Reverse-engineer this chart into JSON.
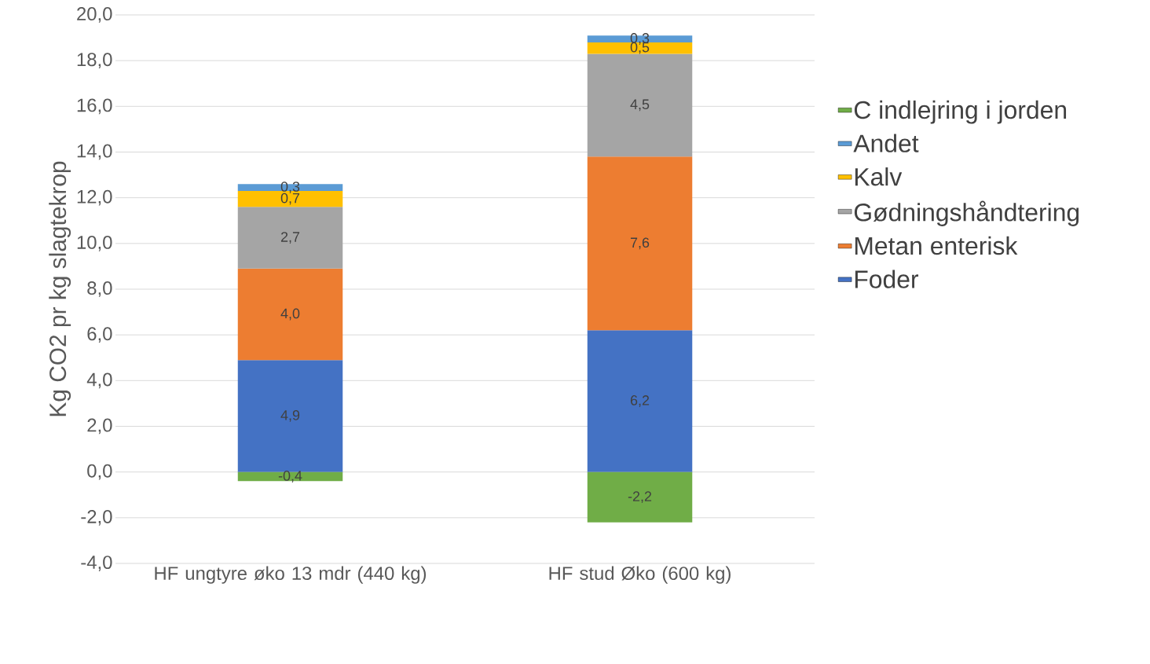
{
  "chart_data": {
    "type": "bar",
    "stacked": true,
    "ylabel": "Kg CO2 pr kg slagtekrop",
    "categories": [
      "HF ungtyre øko 13 mdr (440 kg)",
      "HF stud Øko (600 kg)"
    ],
    "series": [
      {
        "name": "Foder",
        "color": "#4472c4",
        "values": [
          4.9,
          6.2
        ],
        "value_labels": [
          "4,9",
          "6,2"
        ]
      },
      {
        "name": "Metan enterisk",
        "color": "#ed7d31",
        "values": [
          4.0,
          7.6
        ],
        "value_labels": [
          "4,0",
          "7,6"
        ]
      },
      {
        "name": "Gødningshåndtering",
        "color": "#a5a5a5",
        "values": [
          2.7,
          4.5
        ],
        "value_labels": [
          "2,7",
          "4,5"
        ]
      },
      {
        "name": "Kalv",
        "color": "#ffc000",
        "values": [
          0.7,
          0.5
        ],
        "value_labels": [
          "0,7",
          "0,5"
        ]
      },
      {
        "name": "Andet",
        "color": "#5b9bd5",
        "values": [
          0.3,
          0.3
        ],
        "value_labels": [
          "0,3",
          "0,3"
        ]
      },
      {
        "name": "C indlejring i jorden",
        "color": "#70ad47",
        "values": [
          -0.4,
          -2.2
        ],
        "value_labels": [
          "-0,4",
          "-2,2"
        ]
      }
    ],
    "ylim": [
      -4,
      20
    ],
    "yticks": [
      {
        "value": -4,
        "label": "-4,0"
      },
      {
        "value": -2,
        "label": "-2,0"
      },
      {
        "value": 0,
        "label": "0,0"
      },
      {
        "value": 2,
        "label": "2,0"
      },
      {
        "value": 4,
        "label": "4,0"
      },
      {
        "value": 6,
        "label": "6,0"
      },
      {
        "value": 8,
        "label": "8,0"
      },
      {
        "value": 10,
        "label": "10,0"
      },
      {
        "value": 12,
        "label": "12,0"
      },
      {
        "value": 14,
        "label": "14,0"
      },
      {
        "value": 16,
        "label": "16,0"
      },
      {
        "value": 18,
        "label": "18,0"
      },
      {
        "value": 20,
        "label": "20,0"
      }
    ],
    "grid": "y",
    "legend": "right"
  }
}
